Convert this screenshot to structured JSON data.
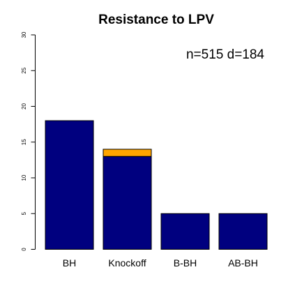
{
  "chart_data": {
    "type": "bar",
    "title": "Resistance to LPV",
    "annotation": "n=515 d=184",
    "categories": [
      "BH",
      "Knockoff",
      "B-BH",
      "AB-BH"
    ],
    "series": [
      {
        "color": "#00007f",
        "values": [
          18,
          13,
          5,
          5
        ]
      },
      {
        "color": "#ffa500",
        "values": [
          0,
          1,
          0,
          0
        ]
      }
    ],
    "ylim": [
      0,
      30
    ],
    "yticks": [
      0,
      5,
      10,
      15,
      20,
      25,
      30
    ],
    "grid": false,
    "legend": "none"
  }
}
